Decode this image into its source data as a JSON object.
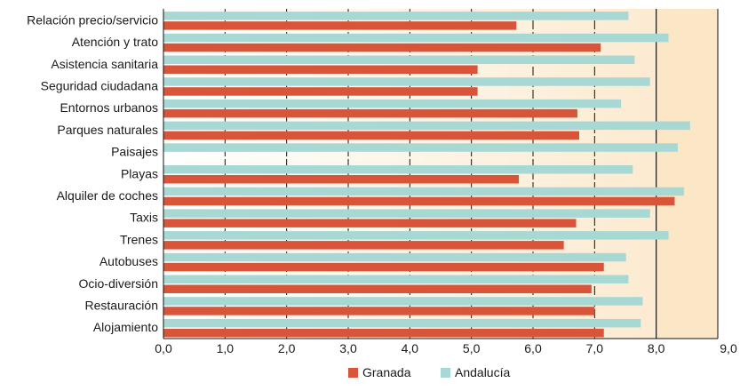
{
  "chart_data": {
    "type": "bar",
    "orientation": "horizontal",
    "categories": [
      "Relación precio/servicio",
      "Atención y trato",
      "Asistencia sanitaria",
      "Seguridad ciudadana",
      "Entornos urbanos",
      "Parques naturales",
      "Paisajes",
      "Playas",
      "Alquiler de coches",
      "Taxis",
      "Trenes",
      "Autobuses",
      "Ocio-diversión",
      "Restauración",
      "Alojamiento"
    ],
    "series": [
      {
        "name": "Andalucía",
        "color": "#a8d8d4",
        "values": [
          7.55,
          8.2,
          7.65,
          7.9,
          7.43,
          8.55,
          8.35,
          7.62,
          8.45,
          7.9,
          8.2,
          7.51,
          7.55,
          7.78,
          7.75
        ]
      },
      {
        "name": "Granada",
        "color": "#d9553a",
        "values": [
          5.73,
          7.1,
          5.1,
          5.1,
          6.72,
          6.75,
          null,
          5.77,
          8.3,
          6.7,
          6.5,
          7.15,
          6.95,
          7.0,
          7.15
        ]
      }
    ],
    "xlim": [
      0,
      9
    ],
    "x_ticks": [
      "0,0",
      "1,0",
      "2,0",
      "3,0",
      "4,0",
      "5,0",
      "6,0",
      "7,0",
      "8,0",
      "9,0"
    ],
    "highlight_from": 8,
    "grid": "vertical dashed",
    "legend": {
      "position": "bottom-center",
      "entries": [
        "Granada",
        "Andalucía"
      ]
    },
    "colors": {
      "plot_bg_start": "#ffffff",
      "plot_bg_end": "#fce8cb",
      "highlight_band": "#fbe6c6",
      "grid": "#111111"
    }
  }
}
